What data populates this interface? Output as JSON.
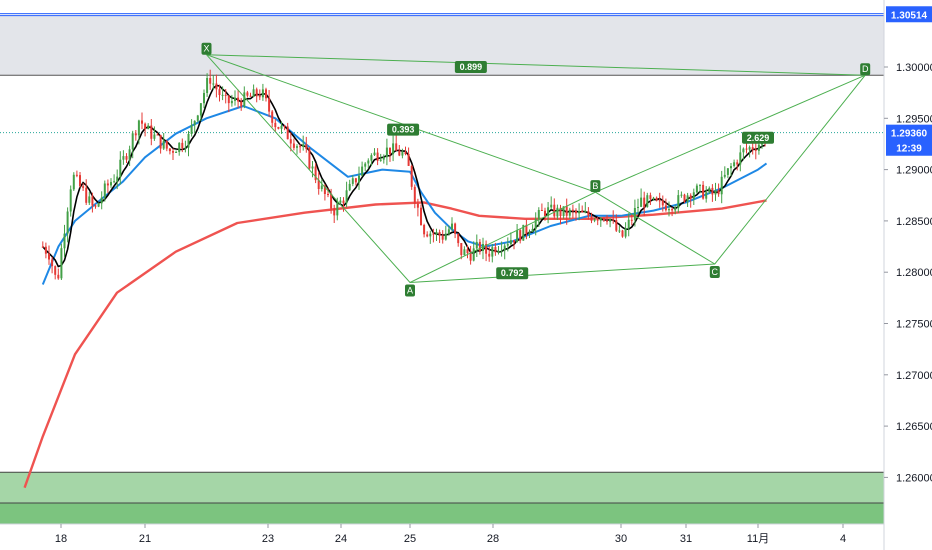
{
  "colors": {
    "background": "#ffffff",
    "upper_zone": "#e3e5ea",
    "upper_zone_line": "#2962ff",
    "lower_zone": "#a5d6a7",
    "lower_zone_dark": "#7cc47f",
    "harmonic": "#4caf50",
    "harmonic_label_bg": "#2e7d32",
    "candle_up": "#43a047",
    "candle_down": "#e53935",
    "ma_fast": "#000000",
    "ma_mid": "#1e88e5",
    "ma_slow": "#ef5350",
    "price_tag_bg": "#2962ff",
    "price_tag_text": "#ffffff",
    "current_line": "#26a69a",
    "axis_text": "#131722"
  },
  "chart_data": {
    "type": "candlestick",
    "title": "",
    "xlabel": "",
    "ylabel": "",
    "ylim": [
      1.2555,
      1.3075
    ],
    "y_ticks": [
      "1.30000",
      "1.29500",
      "1.29000",
      "1.28500",
      "1.28000",
      "1.27500",
      "1.27000",
      "1.26500",
      "1.26000"
    ],
    "x_ticks": [
      {
        "label": "18",
        "day": 18
      },
      {
        "label": "21",
        "day": 21
      },
      {
        "label": "23",
        "day": 23
      },
      {
        "label": "24",
        "day": 24
      },
      {
        "label": "25",
        "day": 25
      },
      {
        "label": "28",
        "day": 28
      },
      {
        "label": "30",
        "day": 30
      },
      {
        "label": "31",
        "day": 31
      },
      {
        "label": "11月",
        "day": 32
      },
      {
        "label": "4",
        "day": 33
      }
    ],
    "x_range_days": [
      17.3,
      34.1
    ],
    "candle_anchors": [
      [
        17.3,
        1.2825
      ],
      [
        17.55,
        1.2818
      ],
      [
        17.85,
        1.2788
      ],
      [
        18.05,
        1.283
      ],
      [
        18.4,
        1.2895
      ],
      [
        18.8,
        1.2878
      ],
      [
        19.2,
        1.286
      ],
      [
        19.6,
        1.2882
      ],
      [
        20.0,
        1.2896
      ],
      [
        20.4,
        1.292
      ],
      [
        20.8,
        1.295
      ],
      [
        21.1,
        1.2935
      ],
      [
        21.4,
        1.2918
      ],
      [
        21.7,
        1.293
      ],
      [
        21.9,
        1.2966
      ],
      [
        22.05,
        1.299
      ],
      [
        22.3,
        1.2965
      ],
      [
        22.6,
        1.2968
      ],
      [
        22.9,
        1.2975
      ],
      [
        23.1,
        1.2945
      ],
      [
        23.5,
        1.2918
      ],
      [
        23.7,
        1.2885
      ],
      [
        23.9,
        1.286
      ],
      [
        24.1,
        1.2878
      ],
      [
        24.4,
        1.2912
      ],
      [
        24.7,
        1.292
      ],
      [
        24.9,
        1.2915
      ],
      [
        25.1,
        1.288
      ],
      [
        25.5,
        1.2842
      ],
      [
        25.8,
        1.2838
      ],
      [
        26.2,
        1.2835
      ],
      [
        26.5,
        1.2845
      ],
      [
        26.8,
        1.282
      ],
      [
        27.2,
        1.2818
      ],
      [
        27.5,
        1.2825
      ],
      [
        27.8,
        1.2818
      ],
      [
        28.2,
        1.283
      ],
      [
        28.5,
        1.284
      ],
      [
        28.8,
        1.286
      ],
      [
        29.1,
        1.2858
      ],
      [
        29.5,
        1.2855
      ],
      [
        29.8,
        1.2855
      ],
      [
        30.0,
        1.2832
      ],
      [
        30.3,
        1.287
      ],
      [
        30.6,
        1.2865
      ],
      [
        30.85,
        1.2868
      ],
      [
        31.1,
        1.288
      ],
      [
        31.4,
        1.2875
      ],
      [
        31.6,
        1.29
      ],
      [
        31.8,
        1.2918
      ],
      [
        32.0,
        1.2925
      ],
      [
        32.1,
        1.2932
      ]
    ],
    "ma_mid": [
      [
        17.3,
        1.2788
      ],
      [
        17.9,
        1.2825
      ],
      [
        18.5,
        1.285
      ],
      [
        19.3,
        1.2868
      ],
      [
        20.2,
        1.2888
      ],
      [
        21.0,
        1.2912
      ],
      [
        21.5,
        1.2935
      ],
      [
        22.0,
        1.295
      ],
      [
        22.6,
        1.2962
      ],
      [
        23.1,
        1.295
      ],
      [
        23.6,
        1.292
      ],
      [
        24.1,
        1.2893
      ],
      [
        24.6,
        1.29
      ],
      [
        25.0,
        1.2898
      ],
      [
        25.4,
        1.2878
      ],
      [
        25.9,
        1.2858
      ],
      [
        26.5,
        1.2842
      ],
      [
        27.1,
        1.283
      ],
      [
        27.7,
        1.2825
      ],
      [
        28.3,
        1.283
      ],
      [
        28.9,
        1.2845
      ],
      [
        29.5,
        1.2855
      ],
      [
        30.0,
        1.2855
      ],
      [
        30.5,
        1.286
      ],
      [
        31.0,
        1.2868
      ],
      [
        31.5,
        1.2882
      ],
      [
        32.0,
        1.29
      ],
      [
        32.1,
        1.2906
      ]
    ],
    "ma_slow": [
      [
        16.6,
        1.259
      ],
      [
        17.3,
        1.264
      ],
      [
        18.5,
        1.272
      ],
      [
        20.0,
        1.278
      ],
      [
        21.5,
        1.282
      ],
      [
        22.5,
        1.2848
      ],
      [
        23.5,
        1.2858
      ],
      [
        24.5,
        1.2866
      ],
      [
        25.5,
        1.2868
      ],
      [
        26.5,
        1.2862
      ],
      [
        27.5,
        1.2855
      ],
      [
        28.5,
        1.2852
      ],
      [
        29.5,
        1.2852
      ],
      [
        30.5,
        1.2856
      ],
      [
        31.5,
        1.2862
      ],
      [
        32.1,
        1.287
      ]
    ],
    "zones": {
      "upper": {
        "from": 1.2992,
        "to": 1.3051
      },
      "lower": {
        "from": 1.2555,
        "to": 1.2605
      },
      "lower_split": 1.2575
    },
    "harmonic": {
      "points": [
        {
          "name": "X",
          "day": 22.0,
          "price": 1.3012
        },
        {
          "name": "A",
          "day": 25.0,
          "price": 1.279
        },
        {
          "name": "B",
          "day": 29.6,
          "price": 1.2878
        },
        {
          "name": "C",
          "day": 31.4,
          "price": 1.2808
        },
        {
          "name": "D",
          "day": 33.6,
          "price": 1.2992
        }
      ],
      "ratios": [
        {
          "label": "0.899",
          "day": 27.2,
          "price": 1.3
        },
        {
          "label": "0.393",
          "day": 24.9,
          "price": 1.2939
        },
        {
          "label": "0.792",
          "day": 28.3,
          "price": 1.2799
        },
        {
          "label": "2.629",
          "day": 32.0,
          "price": 1.2931
        }
      ]
    },
    "price_tags": [
      {
        "label": "1.30514",
        "price": 1.30514
      },
      {
        "label": "1.29360",
        "price": 1.2936
      },
      {
        "label": "12:39",
        "price": 1.29213
      }
    ]
  }
}
